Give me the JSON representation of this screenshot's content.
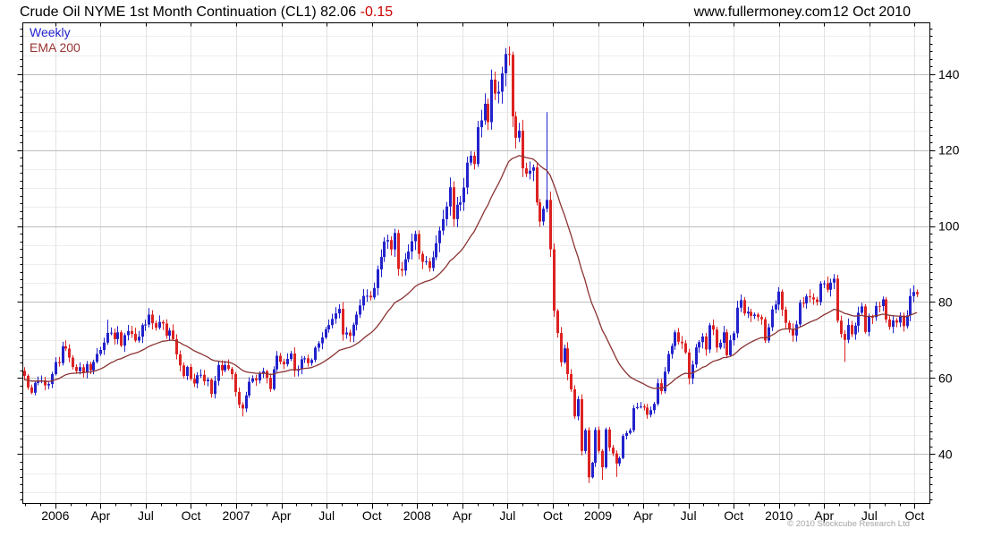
{
  "header": {
    "title": "Crude Oil NYME 1st Month Continuation (CL1)",
    "price": "82.06",
    "change": "-0.15",
    "site": "www.fullermoney.com",
    "date": "12 Oct 2010"
  },
  "footer": {
    "copyright": "© 2010 Stockcube Research Ltd"
  },
  "chart_data": {
    "type": "candlestick",
    "instrument": "Crude Oil NYME 1st Month Continuation (CL1)",
    "interval": "Weekly",
    "last_price": 82.06,
    "change": -0.15,
    "date_shown": "12 Oct 2010",
    "x_axis": {
      "labels": [
        "2006",
        "Apr",
        "Jul",
        "Oct",
        "2007",
        "Apr",
        "Jul",
        "Oct",
        "2008",
        "Apr",
        "Jul",
        "Oct",
        "2009",
        "Apr",
        "Jul",
        "Oct",
        "2010",
        "Apr",
        "Jul",
        "Oct"
      ],
      "start_week": "2005-10-31",
      "points_are_weeks": true
    },
    "y_axis": {
      "tick_labels": [
        40,
        60,
        80,
        100,
        120,
        140
      ],
      "minor_tick_step": 2,
      "minor_grid_step": 5,
      "range": [
        26.9,
        153.6
      ],
      "side": "right"
    },
    "legend": [
      {
        "label": "Weekly",
        "color": "#2222cc"
      },
      {
        "label": "EMA 200",
        "color": "#993333"
      }
    ],
    "series": [
      {
        "name": "Weekly",
        "type": "candlestick",
        "first_open": 61.9,
        "closes": [
          60.58,
          57.53,
          56.14,
          58.71,
          59.32,
          59.39,
          58.06,
          58.43,
          61.04,
          64.21,
          63.92,
          68.35,
          67.76,
          65.37,
          62.91,
          61.84,
          62.86,
          61.41,
          63.67,
          62.04,
          64.26,
          66.35,
          67.39,
          69.32,
          71.88,
          71.95,
          70.25,
          72.04,
          68.53,
          71.29,
          72.33,
          71.63,
          69.88,
          70.87,
          73.93,
          74.09,
          76.7,
          74.43,
          73.24,
          74.76,
          74.35,
          71.14,
          72.51,
          70.26,
          66.25,
          63.33,
          60.55,
          62.91,
          59.76,
          58.57,
          60.75,
          60.86,
          59.14,
          59.59,
          55.81,
          59.24,
          63.43,
          62.03,
          63.43,
          62.41,
          61.05,
          56.31,
          52.99,
          51.99,
          55.42,
          59.02,
          59.89,
          59.39,
          61.14,
          61.79,
          60.05,
          57.11,
          62.28,
          65.87,
          64.28,
          63.63,
          65.03,
          66.46,
          61.93,
          62.37,
          64.94,
          65.2,
          63.93,
          64.76,
          67.99,
          69.14,
          70.68,
          72.81,
          73.93,
          75.57,
          77.02,
          78.21,
          71.47,
          71.98,
          71.09,
          74.04,
          76.7,
          79.1,
          81.62,
          81.66,
          81.22,
          83.69,
          88.6,
          91.86,
          95.93,
          96.32,
          93.84,
          98.18,
          88.71,
          88.28,
          91.27,
          93.31,
          96.0,
          97.91,
          92.69,
          90.57,
          90.71,
          88.96,
          91.77,
          95.5,
          98.81,
          101.84,
          105.15,
          110.21,
          101.84,
          105.62,
          106.23,
          110.14,
          116.69,
          118.52,
          116.32,
          126.02,
          127.82,
          132.19,
          127.35,
          138.54,
          134.86,
          135.36,
          140.21,
          145.29,
          145.08,
          128.88,
          123.26,
          125.1,
          115.2,
          113.77,
          114.57,
          115.46,
          106.23,
          101.18,
          104.55,
          106.89,
          93.88,
          77.7,
          71.84,
          64.15,
          67.81,
          61.04,
          57.04,
          49.93,
          54.43,
          40.81,
          46.28,
          33.87,
          37.71,
          46.34,
          40.83,
          36.51,
          46.47,
          41.68,
          40.17,
          37.51,
          38.94,
          44.76,
          45.52,
          46.25,
          52.07,
          52.38,
          52.51,
          52.24,
          50.33,
          51.55,
          53.2,
          58.63,
          56.54,
          61.67,
          66.31,
          68.44,
          72.04,
          69.55,
          69.16,
          66.73,
          59.89,
          63.56,
          68.05,
          69.45,
          70.93,
          67.51,
          73.89,
          72.74,
          68.02,
          69.29,
          72.04,
          66.02,
          69.95,
          71.77,
          78.53,
          80.5,
          77.0,
          77.43,
          76.35,
          76.72,
          76.05,
          75.47,
          69.87,
          73.36,
          78.05,
          79.36,
          82.75,
          78.0,
          74.54,
          72.89,
          71.19,
          74.13,
          79.81,
          79.66,
          81.5,
          81.24,
          80.68,
          80.0,
          84.87,
          84.92,
          83.24,
          85.12,
          86.15,
          75.11,
          71.61,
          70.04,
          73.97,
          71.51,
          73.78,
          77.18,
          78.86,
          72.14,
          76.09,
          76.01,
          78.98,
          78.95,
          80.7,
          75.39,
          73.46,
          75.17,
          74.6,
          76.45,
          73.66,
          76.49,
          81.58,
          82.66,
          82.06
        ],
        "high_overrides": {
          "24": 75.35,
          "36": 78.4,
          "107": 99.29,
          "140": 147.27,
          "151": 130.0,
          "207": 82.0,
          "218": 83.95,
          "235": 87.15,
          "258": 83.3
        },
        "low_overrides": {
          "54": 54.86,
          "63": 49.9,
          "163": 32.4,
          "167": 33.2,
          "171": 33.98,
          "192": 58.32,
          "235": 74.51,
          "237": 64.24,
          "258": 81.32
        }
      },
      {
        "name": "EMA 200",
        "type": "line",
        "derived_from": "closes",
        "method": "ema"
      }
    ],
    "colors": {
      "up": "#2222cc",
      "down": "#dd2222",
      "ema": "#8b3333",
      "grid_major": "#bdbdbd",
      "grid_minor": "#ededed",
      "grid_vert": "#e2e2e2",
      "axis": "#000000",
      "change_text": "#cc0000",
      "copyright_text": "#a3a3a3"
    }
  }
}
